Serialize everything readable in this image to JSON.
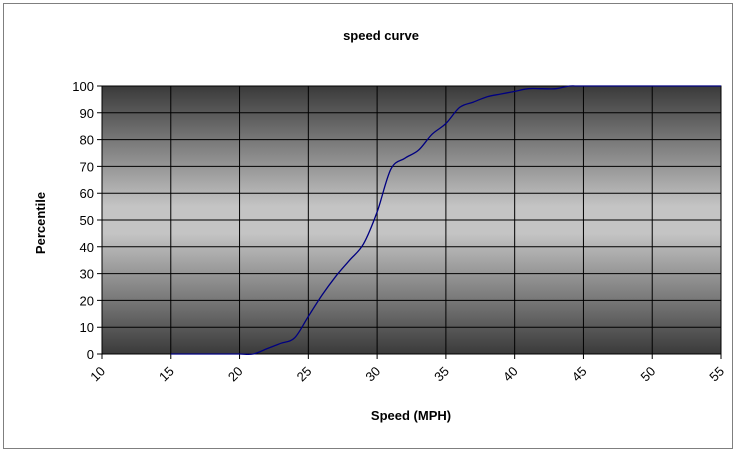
{
  "chart_data": {
    "type": "line",
    "title": "speed curve",
    "xlabel": "Speed (MPH)",
    "ylabel": "Percentile",
    "xlim": [
      10,
      55
    ],
    "ylim": [
      0,
      100
    ],
    "x_ticks": [
      10,
      15,
      20,
      25,
      30,
      35,
      40,
      45,
      50,
      55
    ],
    "y_ticks": [
      0,
      10,
      20,
      30,
      40,
      50,
      60,
      70,
      80,
      90,
      100
    ],
    "grid": true,
    "legend": "none",
    "series": [
      {
        "color": "#000080",
        "x": [
          15,
          16,
          17,
          18,
          19,
          20,
          21,
          22,
          23,
          24,
          25,
          26,
          27,
          28,
          29,
          30,
          31,
          32,
          33,
          34,
          35,
          36,
          37,
          38,
          39,
          40,
          41,
          42,
          43,
          44,
          45,
          50,
          55
        ],
        "y": [
          0,
          0,
          0,
          0,
          0,
          0,
          0,
          2,
          4,
          6,
          14,
          22,
          29,
          35,
          41,
          53,
          69,
          73,
          76,
          82,
          86,
          92,
          94,
          96,
          97,
          98,
          99,
          99,
          99,
          100,
          100,
          100,
          100
        ]
      }
    ]
  }
}
